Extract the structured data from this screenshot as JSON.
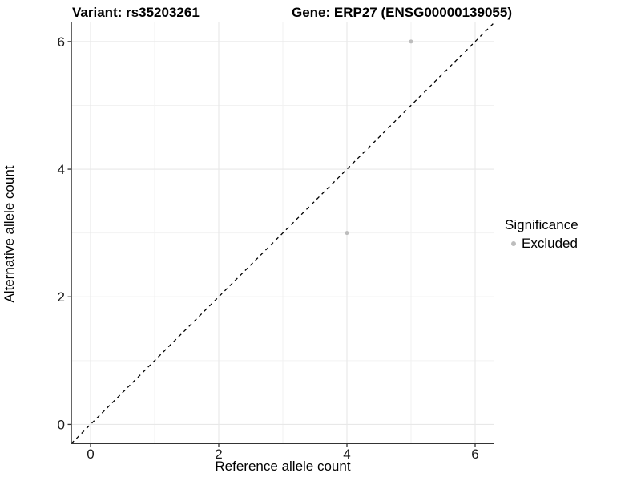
{
  "figure": {
    "title_left": "Variant: rs35203261",
    "title_right": "Gene: ERP27 (ENSG00000139055)"
  },
  "chart_data": {
    "type": "scatter",
    "title": "Variant: rs35203261 / Gene: ERP27 (ENSG00000139055)",
    "xlabel": "Reference allele count",
    "ylabel": "Alternative allele count",
    "xlim": [
      -0.3,
      6.3
    ],
    "ylim": [
      -0.3,
      6.3
    ],
    "xticks": [
      0,
      2,
      4,
      6
    ],
    "yticks": [
      0,
      2,
      4,
      6
    ],
    "minor_x": [
      1,
      3,
      5
    ],
    "minor_y": [
      1,
      3,
      5
    ],
    "grid": true,
    "legend_position": "right",
    "series": [
      {
        "name": "Excluded",
        "color": "#bdbdbd",
        "points": [
          {
            "x": 4,
            "y": 3
          },
          {
            "x": 5,
            "y": 6
          }
        ]
      }
    ],
    "reference_line": {
      "slope": 1,
      "intercept": 0,
      "style": "dashed",
      "color": "#000000"
    },
    "legend": {
      "title": "Significance",
      "entries": [
        {
          "label": "Excluded",
          "color": "#bdbdbd"
        }
      ]
    },
    "colors": {
      "background": "#ffffff",
      "gridline_major": "#e8e8e8",
      "gridline_minor": "#f2f2f2",
      "axis_line": "#343434",
      "tick_label": "#1a1a1a",
      "point": "#bdbdbd"
    }
  }
}
